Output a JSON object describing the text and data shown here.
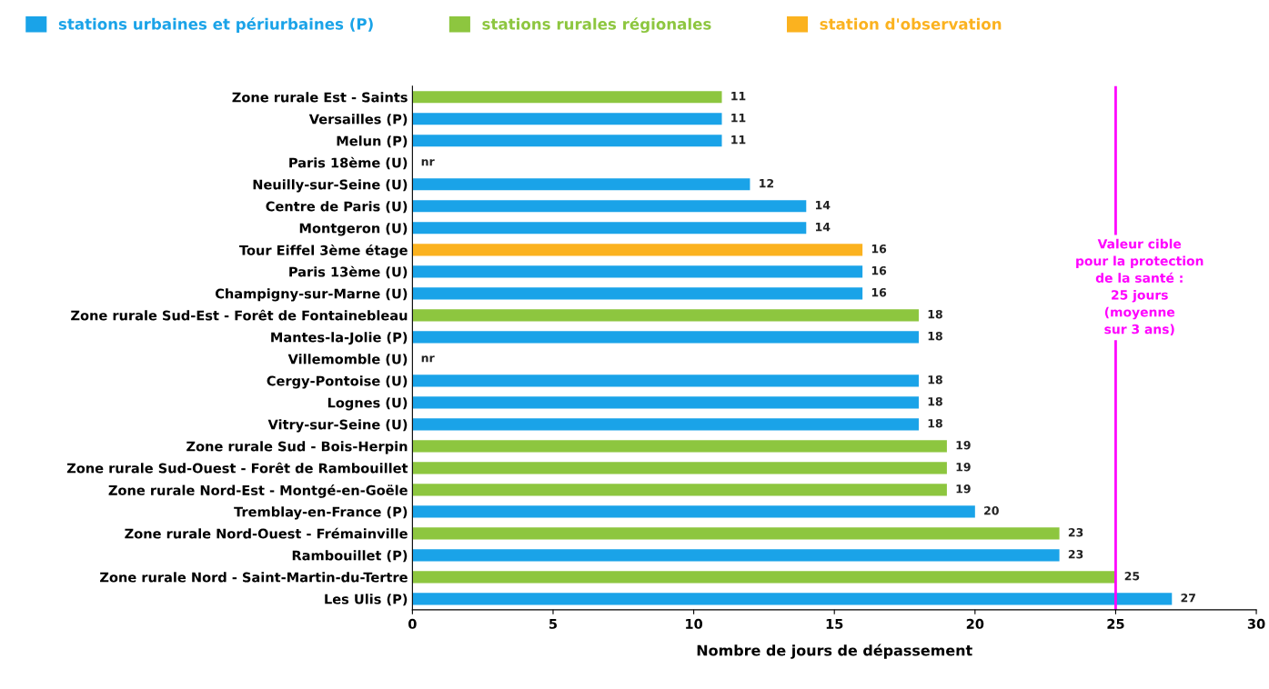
{
  "chart_data": {
    "type": "bar",
    "orientation": "horizontal",
    "xlabel": "Nombre de jours de dépassement",
    "categories": [
      "Zone rurale Est - Saints",
      "Versailles (P)",
      "Melun (P)",
      "Paris 18ème (U)",
      "Neuilly-sur-Seine (U)",
      "Centre de Paris (U)",
      "Montgeron (U)",
      "Tour Eiffel 3ème étage",
      "Paris 13ème (U)",
      "Champigny-sur-Marne (U)",
      "Zone rurale Sud-Est - Forêt de Fontainebleau",
      "Mantes-la-Jolie (P)",
      "Villemomble (U)",
      "Cergy-Pontoise (U)",
      "Lognes (U)",
      "Vitry-sur-Seine (U)",
      "Zone rurale Sud - Bois-Herpin",
      "Zone rurale Sud-Ouest - Forêt de Rambouillet",
      "Zone rurale Nord-Est - Montgé-en-Goële",
      "Tremblay-en-France (P)",
      "Zone rurale Nord-Ouest - Frémainville",
      "Rambouillet (P)",
      "Zone rurale Nord - Saint-Martin-du-Tertre",
      "Les Ulis (P)"
    ],
    "series": [
      {
        "name": "stations urbaines et périurbaines (P)",
        "color": "#1aa3e8",
        "values": [
          null,
          11,
          11,
          null,
          12,
          14,
          14,
          null,
          16,
          16,
          null,
          18,
          null,
          18,
          18,
          18,
          null,
          null,
          null,
          20,
          null,
          23,
          null,
          27
        ],
        "value_labels": [
          null,
          "11",
          "11",
          "nr",
          "12",
          "14",
          "14",
          null,
          "16",
          "16",
          null,
          "18",
          "nr",
          "18",
          "18",
          "18",
          null,
          null,
          null,
          "20",
          null,
          "23",
          null,
          "27"
        ]
      },
      {
        "name": "stations rurales régionales",
        "color": "#8dc63f",
        "values": [
          11,
          null,
          null,
          null,
          null,
          null,
          null,
          null,
          null,
          null,
          18,
          null,
          null,
          null,
          null,
          null,
          19,
          19,
          19,
          null,
          23,
          null,
          25,
          null
        ],
        "value_labels": [
          "11",
          null,
          null,
          null,
          null,
          null,
          null,
          null,
          null,
          null,
          "18",
          null,
          null,
          null,
          null,
          null,
          "19",
          "19",
          "19",
          null,
          "23",
          null,
          "25",
          null
        ]
      },
      {
        "name": "station d'observation",
        "color": "#fbb21f",
        "values": [
          null,
          null,
          null,
          null,
          null,
          null,
          null,
          16,
          null,
          null,
          null,
          null,
          null,
          null,
          null,
          null,
          null,
          null,
          null,
          null,
          null,
          null,
          null,
          null
        ],
        "value_labels": [
          null,
          null,
          null,
          null,
          null,
          null,
          null,
          "16",
          null,
          null,
          null,
          null,
          null,
          null,
          null,
          null,
          null,
          null,
          null,
          null,
          null,
          null,
          null,
          null
        ]
      }
    ],
    "xlim": [
      0,
      30
    ],
    "xticks": [
      0,
      5,
      10,
      15,
      20,
      25,
      30
    ],
    "ref_lines": [
      {
        "axis": "x",
        "value": 25,
        "label": "Valeur cible\npour la protection\nde la santé :\n25 jours\n(moyenne\nsur 3 ans)",
        "color": "#ff00ff"
      }
    ],
    "legend": "top",
    "grid": false
  }
}
